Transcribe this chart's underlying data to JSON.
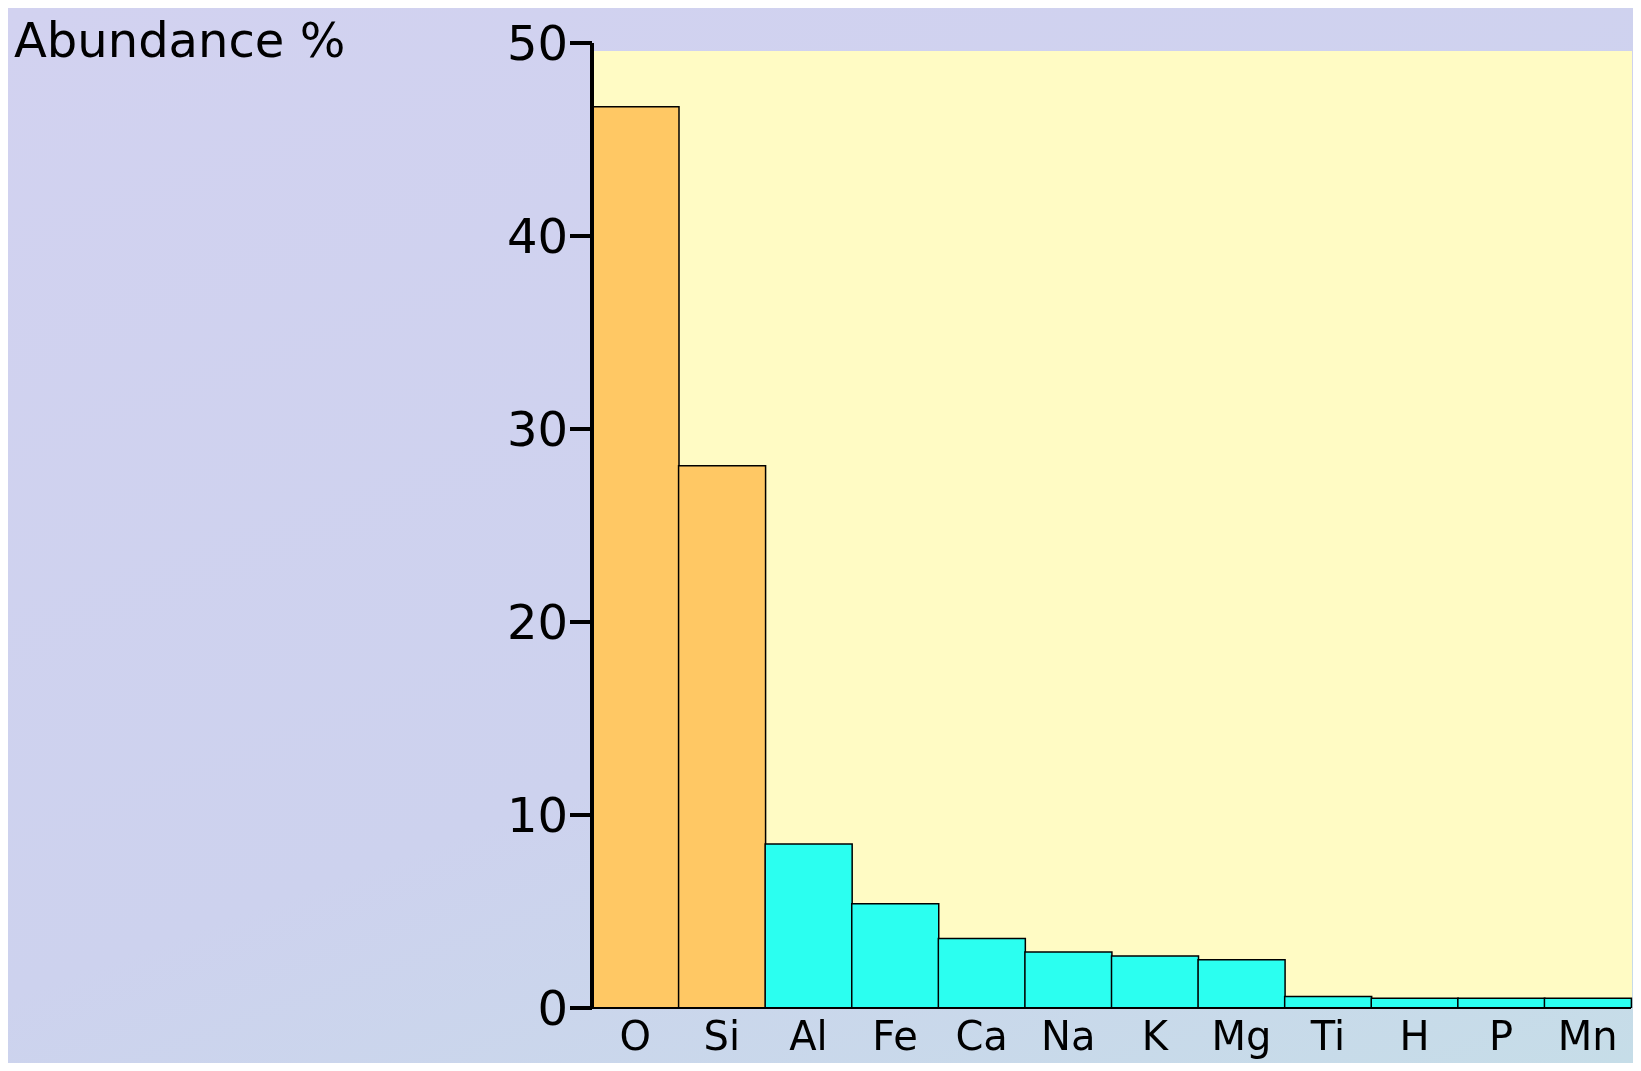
{
  "chart_data": {
    "type": "bar",
    "ylabel": "Abundance %",
    "categories": [
      "O",
      "Si",
      "Al",
      "Fe",
      "Ca",
      "Na",
      "K",
      "Mg",
      "Ti",
      "H",
      "P",
      "Mn"
    ],
    "values": [
      46.7,
      28.1,
      8.5,
      5.4,
      3.6,
      2.9,
      2.7,
      2.5,
      0.6,
      0.5,
      0.5,
      0.5
    ],
    "colors": [
      "#ffc864",
      "#ffc864",
      "#2bfff0",
      "#2bfff0",
      "#2bfff0",
      "#2bfff0",
      "#2bfff0",
      "#2bfff0",
      "#2bfff0",
      "#2bfff0",
      "#2bfff0",
      "#2bfff0"
    ],
    "ylim": [
      0,
      50
    ],
    "yticks": [
      0,
      10,
      20,
      30,
      40,
      50
    ],
    "grid": false,
    "legend": false
  }
}
